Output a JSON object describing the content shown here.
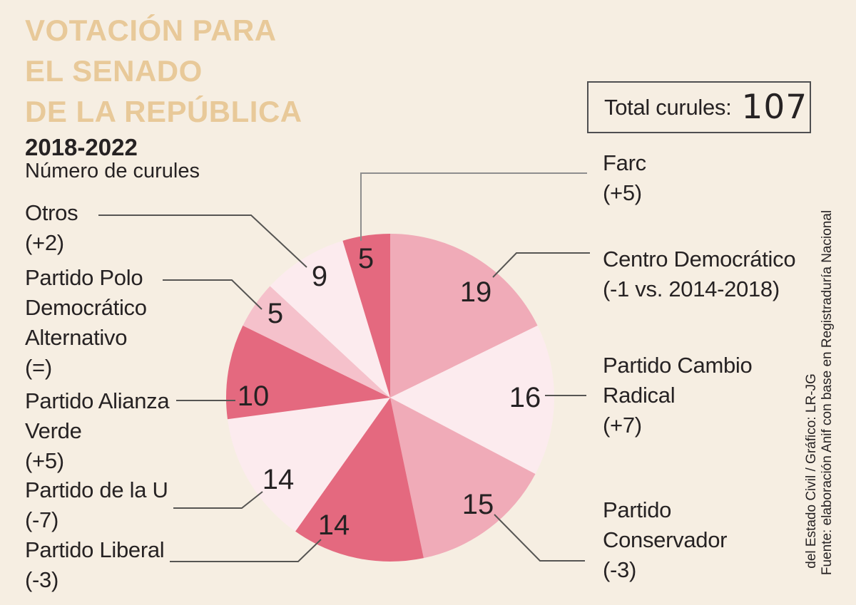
{
  "title_lines": [
    "VOTACIÓN PARA",
    "EL SENADO",
    "DE LA REPÚBLICA"
  ],
  "subtitle": "2018-2022",
  "unit_label": "Número de curules",
  "total_box": {
    "label": "Total curules:",
    "value": "107"
  },
  "source_lines": [
    "Fuente: elaboración Anif con base en Registraduría Nacional",
    "del Estado Civil / Gráfico: LR-JG"
  ],
  "colors": {
    "background": "#f6eee2",
    "title": "#e8c999",
    "text": "#262223",
    "leader": "#565553",
    "leader_light": "#8e8e8e",
    "box_border": "#4f4f51",
    "shades": {
      "dark": "#e4697f",
      "medium": "#f0abb8",
      "medium_light": "#f5c1cb",
      "light": "#fcebee"
    }
  },
  "chart_data": {
    "type": "pie",
    "title": "Votación para el Senado de la República 2018-2022",
    "unit": "Número de curules",
    "total": 107,
    "start_angle_deg": 0,
    "direction": "clockwise",
    "legend_position": "around",
    "slices": [
      {
        "party": "Centro Democrático",
        "change": "(-1 vs. 2014-2018)",
        "value": 19,
        "shade": "medium"
      },
      {
        "party": "Partido Cambio Radical",
        "change": "(+7)",
        "value": 16,
        "shade": "light"
      },
      {
        "party": "Partido Conservador",
        "change": "(-3)",
        "value": 15,
        "shade": "medium"
      },
      {
        "party": "Partido Liberal",
        "change": "(-3)",
        "value": 14,
        "shade": "dark"
      },
      {
        "party": "Partido de la U",
        "change": "(-7)",
        "value": 14,
        "shade": "light"
      },
      {
        "party": "Partido Alianza Verde",
        "change": "(+5)",
        "value": 10,
        "shade": "dark"
      },
      {
        "party": "Partido Polo Democrático Alternativo",
        "change": "(=)",
        "value": 5,
        "shade": "medium_light"
      },
      {
        "party": "Otros",
        "change": "(+2)",
        "value": 9,
        "shade": "light"
      },
      {
        "party": "Farc",
        "change": "(+5)",
        "value": 5,
        "shade": "dark"
      }
    ]
  }
}
